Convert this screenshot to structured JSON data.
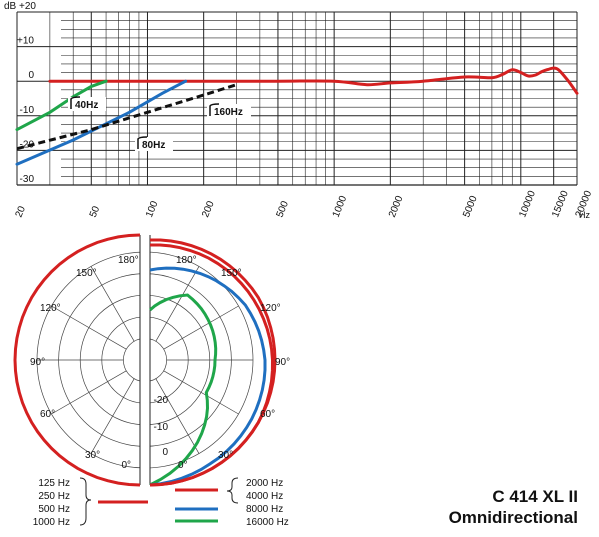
{
  "model": {
    "name": "C 414 XL II",
    "pattern": "Omnidirectional"
  },
  "colors": {
    "red": "#d42020",
    "blue": "#1f6fc0",
    "green": "#1fa64a",
    "black": "#111111",
    "grid": "#333333"
  },
  "chart_data": [
    {
      "type": "line",
      "title": "",
      "xlabel": "Hz",
      "ylabel": "dB",
      "xscale": "log",
      "xlim": [
        20,
        20000
      ],
      "ylim": [
        -30,
        20
      ],
      "yticks": [
        {
          "value": 20,
          "label": "dB  +20"
        },
        {
          "value": 10,
          "label": "+10"
        },
        {
          "value": 0,
          "label": "0"
        },
        {
          "value": -10,
          "label": "-10"
        },
        {
          "value": -20,
          "label": "-20"
        },
        {
          "value": -30,
          "label": "-30"
        }
      ],
      "xticks": [
        {
          "value": 20,
          "label": "20"
        },
        {
          "value": 50,
          "label": "50"
        },
        {
          "value": 100,
          "label": "100"
        },
        {
          "value": 200,
          "label": "200"
        },
        {
          "value": 500,
          "label": "500"
        },
        {
          "value": 1000,
          "label": "1000"
        },
        {
          "value": 2000,
          "label": "2000"
        },
        {
          "value": 5000,
          "label": "5000"
        },
        {
          "value": 10000,
          "label": "10000"
        },
        {
          "value": 15000,
          "label": "15000"
        },
        {
          "value": 20000,
          "label": "20000"
        }
      ],
      "grid": true,
      "series": [
        {
          "color": "#d42020",
          "style": "solid",
          "x": [
            30,
            50,
            100,
            200,
            500,
            1000,
            1500,
            2000,
            3000,
            5000,
            7000,
            8000,
            9000,
            10000,
            11000,
            12000,
            13000,
            14000,
            15000,
            16000,
            18000,
            20000
          ],
          "y": [
            0,
            0,
            0,
            0,
            0,
            0,
            -1,
            -0.5,
            0,
            1.2,
            1,
            2,
            3.3,
            2.5,
            1.5,
            1.8,
            2.8,
            3.4,
            3.8,
            3.2,
            0,
            -3.5
          ]
        },
        {
          "color": "#1fa64a",
          "style": "solid",
          "label": "40Hz",
          "x": [
            20,
            30,
            40,
            50,
            60
          ],
          "y": [
            -14,
            -9,
            -4.5,
            -1.5,
            0
          ]
        },
        {
          "color": "#1f6fc0",
          "style": "solid",
          "label": "80Hz",
          "x": [
            20,
            40,
            80,
            120,
            160
          ],
          "y": [
            -24,
            -17,
            -9,
            -3.5,
            0
          ]
        },
        {
          "color": "#111111",
          "style": "dashed",
          "label": "160Hz",
          "x": [
            20,
            50,
            100,
            200,
            300
          ],
          "y": [
            -19.5,
            -14,
            -9,
            -4,
            -1
          ]
        }
      ]
    },
    {
      "type": "polar",
      "title": "",
      "angle_labels": [
        "0°",
        "30°",
        "60°",
        "90°",
        "120°",
        "150°",
        "180°"
      ],
      "radius_labels": [
        "0",
        "-10",
        "-20"
      ],
      "rlim": [
        -25,
        0
      ],
      "left_half": {
        "frequencies": [
          "125 Hz",
          "250 Hz",
          "500 Hz",
          "1000 Hz"
        ],
        "color": "#d42020",
        "angles": [
          0,
          30,
          60,
          90,
          120,
          150,
          180
        ],
        "values": [
          0,
          0,
          0,
          0,
          0,
          0,
          0
        ]
      },
      "right_half": {
        "series": [
          {
            "frequency": "2000 Hz",
            "color": "#d42020",
            "angles": [
              0,
              30,
              60,
              90,
              120,
              150,
              180
            ],
            "values": [
              0,
              0,
              0,
              0,
              0,
              -0.5,
              -1
            ]
          },
          {
            "frequency": "4000 Hz",
            "color": "#d42020",
            "angles": [
              0,
              30,
              60,
              90,
              120,
              150,
              180
            ],
            "values": [
              0,
              0,
              0,
              -0.5,
              -1,
              -1.5,
              -2
            ]
          },
          {
            "frequency": "8000 Hz",
            "color": "#1f6fc0",
            "angles": [
              0,
              30,
              60,
              90,
              120,
              150,
              180
            ],
            "values": [
              0,
              -1,
              -1.5,
              -2,
              -3,
              -5,
              -7
            ]
          },
          {
            "frequency": "16000 Hz",
            "color": "#1fa64a",
            "angles": [
              0,
              30,
              60,
              90,
              120,
              150,
              180
            ],
            "values": [
              0,
              -6,
              -12,
              -12,
              -11,
              -10,
              -15
            ]
          }
        ]
      }
    }
  ]
}
